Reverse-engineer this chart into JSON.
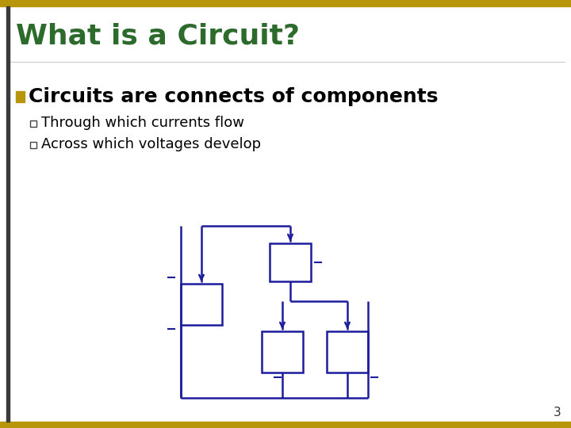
{
  "title": "What is a Circuit?",
  "title_color": "#2D6B2D",
  "bullet_text": "Circuits are connects of components",
  "sub_bullets": [
    "Through which currents flow",
    "Across which voltages develop"
  ],
  "background_color": "#FFFFFF",
  "border_color": "#B8960C",
  "left_bar_color": "#3A3A3A",
  "circuit_color": "#1C1C9C",
  "bullet_marker_color": "#B8960C",
  "page_number": "3",
  "fig_width": 7.2,
  "fig_height": 5.4,
  "dpi": 100
}
